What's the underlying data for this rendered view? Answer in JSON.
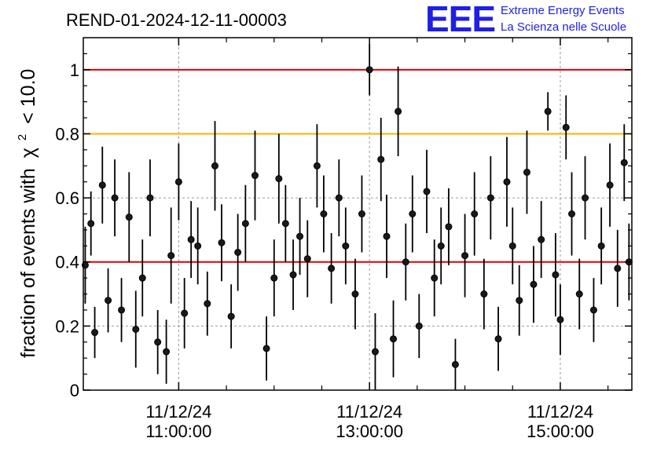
{
  "header": {
    "run_id": "REND-01-2024-12-11-00003",
    "logo_mark": "EEE",
    "logo_line1": "Extreme Energy Events",
    "logo_line2": "La Scienza nelle Scuole"
  },
  "colors": {
    "threshold_red": "#e00000",
    "threshold_orange": "#ffb000",
    "logo_blue": "#1f1fe6",
    "points": "#000000",
    "grid": "#9a9a9a"
  },
  "chart_data": {
    "type": "scatter",
    "title": "REND-01-2024-12-11-00003",
    "ylabel_pre": "fraction of events with",
    "ylabel_chi": "χ",
    "ylabel_sup": "2",
    "ylabel_post": "< 10.0",
    "xlabel": "",
    "x_unit": "hours",
    "xlim": [
      10.0,
      15.75
    ],
    "ylim": [
      0,
      1.1
    ],
    "grid": true,
    "yticks": [
      {
        "value": 0,
        "label": "0"
      },
      {
        "value": 0.2,
        "label": "0.2"
      },
      {
        "value": 0.4,
        "label": "0.4"
      },
      {
        "value": 0.6,
        "label": "0.6"
      },
      {
        "value": 0.8,
        "label": "0.8"
      },
      {
        "value": 1.0,
        "label": "1"
      }
    ],
    "xticks": [
      {
        "value": 11.0,
        "date": "11/12/24",
        "time": "11:00:00"
      },
      {
        "value": 13.0,
        "date": "11/12/24",
        "time": "13:00:00"
      },
      {
        "value": 15.0,
        "date": "11/12/24",
        "time": "15:00:00"
      }
    ],
    "minor_xticks": [
      11.5,
      12.0,
      12.5,
      13.5,
      14.0,
      14.5,
      15.5
    ],
    "reference_lines": [
      {
        "y": 1.0,
        "color": "#e00000"
      },
      {
        "y": 0.8,
        "color": "#ffb000"
      },
      {
        "y": 0.4,
        "color": "#e00000"
      }
    ],
    "series": [
      {
        "x": [
          10.02,
          10.08,
          10.12,
          10.2,
          10.26,
          10.33,
          10.4,
          10.48,
          10.55,
          10.62,
          10.7,
          10.78,
          10.87,
          10.92,
          11.0,
          11.06,
          11.13,
          11.2,
          11.3,
          11.38,
          11.45,
          11.55,
          11.62,
          11.7,
          11.8,
          11.92,
          12.0,
          12.05,
          12.12,
          12.2,
          12.27,
          12.35,
          12.45,
          12.52,
          12.6,
          12.68,
          12.75,
          12.85,
          12.92,
          13.0,
          13.06,
          13.12,
          13.18,
          13.25,
          13.3,
          13.38,
          13.45,
          13.52,
          13.6,
          13.68,
          13.75,
          13.83,
          13.9,
          14.0,
          14.1,
          14.2,
          14.27,
          14.35,
          14.44,
          14.5,
          14.57,
          14.65,
          14.72,
          14.8,
          14.87,
          14.95,
          15.0,
          15.06,
          15.12,
          15.2,
          15.26,
          15.35,
          15.43,
          15.52,
          15.6,
          15.67,
          15.72
        ],
        "y": [
          0.39,
          0.52,
          0.18,
          0.64,
          0.28,
          0.6,
          0.25,
          0.54,
          0.19,
          0.35,
          0.6,
          0.15,
          0.12,
          0.42,
          0.65,
          0.24,
          0.47,
          0.45,
          0.27,
          0.7,
          0.46,
          0.23,
          0.43,
          0.52,
          0.67,
          0.13,
          0.35,
          0.66,
          0.52,
          0.36,
          0.48,
          0.41,
          0.7,
          0.55,
          0.38,
          0.6,
          0.45,
          0.3,
          0.55,
          1.0,
          0.12,
          0.72,
          0.48,
          0.16,
          0.87,
          0.4,
          0.55,
          0.2,
          0.62,
          0.35,
          0.45,
          0.51,
          0.08,
          0.42,
          0.55,
          0.3,
          0.6,
          0.16,
          0.65,
          0.45,
          0.28,
          0.68,
          0.33,
          0.47,
          0.87,
          0.36,
          0.22,
          0.82,
          0.55,
          0.3,
          0.6,
          0.25,
          0.45,
          0.64,
          0.38,
          0.71,
          0.4
        ],
        "err": [
          0.12,
          0.1,
          0.08,
          0.12,
          0.1,
          0.12,
          0.1,
          0.14,
          0.12,
          0.12,
          0.12,
          0.1,
          0.1,
          0.15,
          0.12,
          0.11,
          0.12,
          0.12,
          0.1,
          0.14,
          0.12,
          0.1,
          0.12,
          0.12,
          0.14,
          0.1,
          0.12,
          0.14,
          0.12,
          0.11,
          0.12,
          0.12,
          0.13,
          0.12,
          0.11,
          0.12,
          0.12,
          0.11,
          0.12,
          0.08,
          0.12,
          0.13,
          0.13,
          0.12,
          0.14,
          0.12,
          0.12,
          0.1,
          0.13,
          0.12,
          0.12,
          0.12,
          0.08,
          0.13,
          0.13,
          0.11,
          0.13,
          0.1,
          0.14,
          0.12,
          0.11,
          0.13,
          0.12,
          0.12,
          0.06,
          0.13,
          0.11,
          0.1,
          0.13,
          0.11,
          0.13,
          0.1,
          0.12,
          0.13,
          0.12,
          0.12,
          0.12
        ]
      }
    ]
  }
}
